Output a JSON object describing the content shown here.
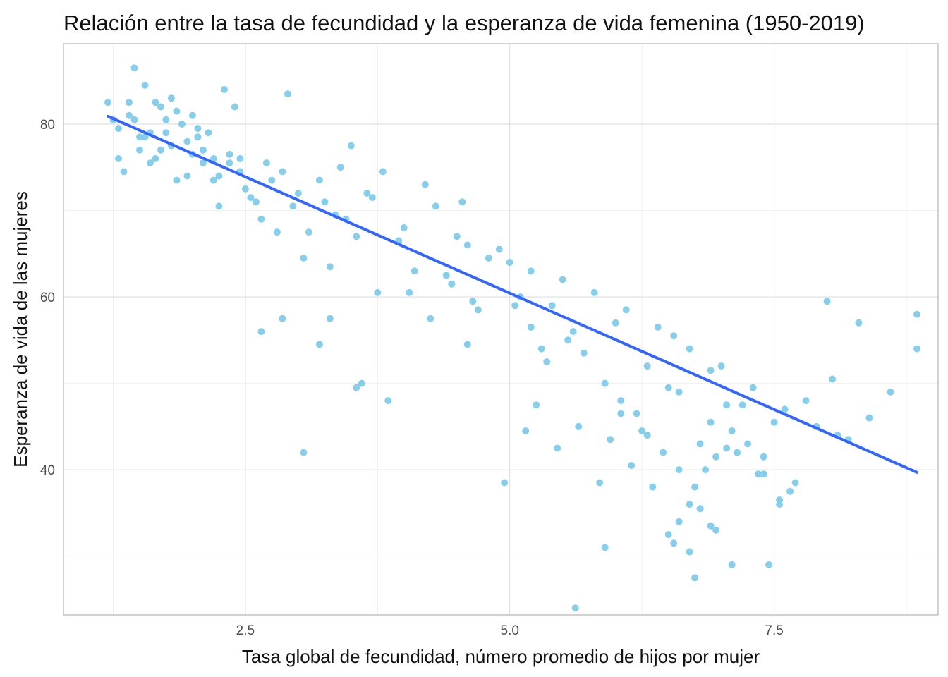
{
  "chart_data": {
    "type": "scatter",
    "title": "Relación entre la tasa de fecundidad y la esperanza de vida femenina (1950-2019)",
    "xlabel": "Tasa global de fecundidad, número promedio de hijos por mujer",
    "ylabel": "Esperanza de vida de las mujeres",
    "xlim": [
      0.78,
      9.05
    ],
    "ylim": [
      23.2,
      89.3
    ],
    "x_ticks": [
      2.5,
      5.0,
      7.5
    ],
    "x_tick_labels": [
      "2.5",
      "5.0",
      "7.5"
    ],
    "y_ticks": [
      40,
      60,
      80
    ],
    "y_tick_labels": [
      "40",
      "60",
      "80"
    ],
    "grid": true,
    "legend": "none",
    "point_color": "#87ceeb",
    "line_color": "#3366ff",
    "trend_line": {
      "x": [
        1.2,
        8.85
      ],
      "y": [
        80.9,
        39.7
      ]
    },
    "points": {
      "x": [
        1.25,
        1.4,
        1.6,
        1.85,
        2.1,
        2.35,
        1.3,
        1.5,
        1.75,
        2.0,
        2.25,
        2.5,
        2.75,
        3.0,
        3.25,
        1.35,
        1.65,
        1.95,
        2.2,
        2.45,
        2.7,
        2.95,
        3.2,
        3.45,
        3.7,
        4.0,
        4.3,
        4.6,
        4.9,
        5.2,
        5.5,
        5.8,
        6.1,
        6.4,
        6.7,
        7.0,
        7.3,
        7.6,
        7.9,
        8.2,
        1.2,
        1.55,
        1.8,
        2.05,
        2.6,
        2.85,
        3.1,
        3.4,
        3.65,
        3.95,
        4.2,
        4.5,
        4.8,
        5.1,
        5.4,
        5.7,
        6.0,
        6.3,
        6.6,
        6.9,
        7.2,
        7.5,
        7.8,
        8.1,
        8.4,
        1.45,
        2.15,
        2.4,
        3.35,
        3.8,
        4.1,
        4.4,
        4.7,
        5.0,
        5.3,
        5.6,
        5.9,
        6.2,
        6.5,
        6.8,
        7.1,
        7.4,
        7.7,
        8.0,
        8.3,
        8.6,
        8.85,
        8.85,
        1.7,
        2.3,
        2.9,
        3.5,
        4.05,
        4.55,
        5.05,
        5.55,
        6.05,
        6.55,
        7.05,
        7.55,
        8.05,
        6.6,
        6.75,
        6.9,
        7.15,
        7.4,
        7.65,
        5.25,
        5.85,
        6.25,
        6.45,
        6.7,
        6.95,
        7.25,
        6.15,
        6.35,
        6.85,
        7.05,
        7.35,
        5.65,
        5.95,
        6.05,
        6.3,
        6.6,
        6.8,
        6.5,
        6.7,
        6.9,
        7.1,
        5.15,
        5.45,
        3.2,
        3.05,
        3.6,
        3.3,
        4.6,
        4.95,
        2.85,
        2.65,
        3.55,
        3.85,
        4.45,
        5.35,
        6.55,
        7.45,
        5.62,
        5.9,
        6.75,
        6.95,
        7.55,
        1.3,
        1.55,
        1.8,
        2.05,
        1.4,
        1.65,
        1.9,
        2.1,
        1.5,
        1.75,
        2.0,
        2.2,
        1.6,
        1.85,
        2.35,
        2.55,
        1.45,
        1.7,
        1.95,
        2.25,
        2.45,
        2.65,
        2.8,
        3.05,
        3.3,
        3.55,
        3.75,
        4.25,
        4.65,
        5.2
      ],
      "y": [
        80.5,
        82.5,
        79.0,
        81.5,
        77.0,
        75.5,
        76.0,
        78.5,
        80.5,
        76.5,
        74.0,
        72.5,
        73.5,
        72.0,
        71.0,
        74.5,
        82.5,
        78.0,
        76.0,
        74.5,
        75.5,
        70.5,
        73.5,
        69.0,
        71.5,
        68.0,
        70.5,
        66.0,
        65.5,
        63.0,
        62.0,
        60.5,
        58.5,
        56.5,
        54.0,
        52.0,
        49.5,
        47.0,
        45.0,
        43.5,
        82.5,
        84.5,
        83.0,
        78.5,
        71.0,
        74.5,
        67.5,
        75.0,
        72.0,
        66.5,
        73.0,
        67.0,
        64.5,
        60.0,
        59.0,
        53.5,
        57.0,
        52.0,
        49.0,
        51.5,
        47.5,
        45.5,
        48.0,
        44.0,
        46.0,
        86.5,
        79.0,
        82.0,
        69.5,
        74.5,
        63.0,
        62.5,
        58.5,
        64.0,
        54.0,
        56.0,
        50.0,
        46.5,
        49.5,
        43.0,
        44.5,
        41.5,
        38.5,
        59.5,
        57.0,
        49.0,
        58.0,
        54.0,
        77.0,
        84.0,
        83.5,
        77.5,
        60.5,
        71.0,
        59.0,
        55.0,
        48.0,
        55.5,
        47.5,
        36.5,
        50.5,
        40.0,
        38.0,
        45.5,
        42.0,
        39.5,
        37.5,
        47.5,
        38.5,
        44.5,
        42.0,
        36.0,
        41.5,
        43.0,
        40.5,
        38.0,
        40.0,
        42.5,
        39.5,
        45.0,
        43.5,
        46.5,
        44.0,
        34.0,
        35.5,
        32.5,
        30.5,
        33.5,
        29.0,
        44.5,
        42.5,
        54.5,
        42.0,
        50.0,
        57.5,
        54.5,
        38.5,
        57.5,
        56.0,
        49.5,
        48.0,
        61.5,
        52.5,
        31.5,
        29.0,
        24.0,
        31.0,
        27.5,
        33.0,
        36.0,
        79.5,
        78.5,
        77.5,
        79.5,
        81.0,
        76.0,
        80.0,
        75.5,
        77.0,
        79.0,
        81.0,
        73.5,
        75.5,
        73.5,
        76.5,
        71.5,
        80.5,
        82.0,
        74.0,
        70.5,
        76.0,
        69.0,
        67.5,
        64.5,
        63.5,
        67.0,
        60.5,
        57.5,
        59.5,
        56.5
      ]
    }
  }
}
